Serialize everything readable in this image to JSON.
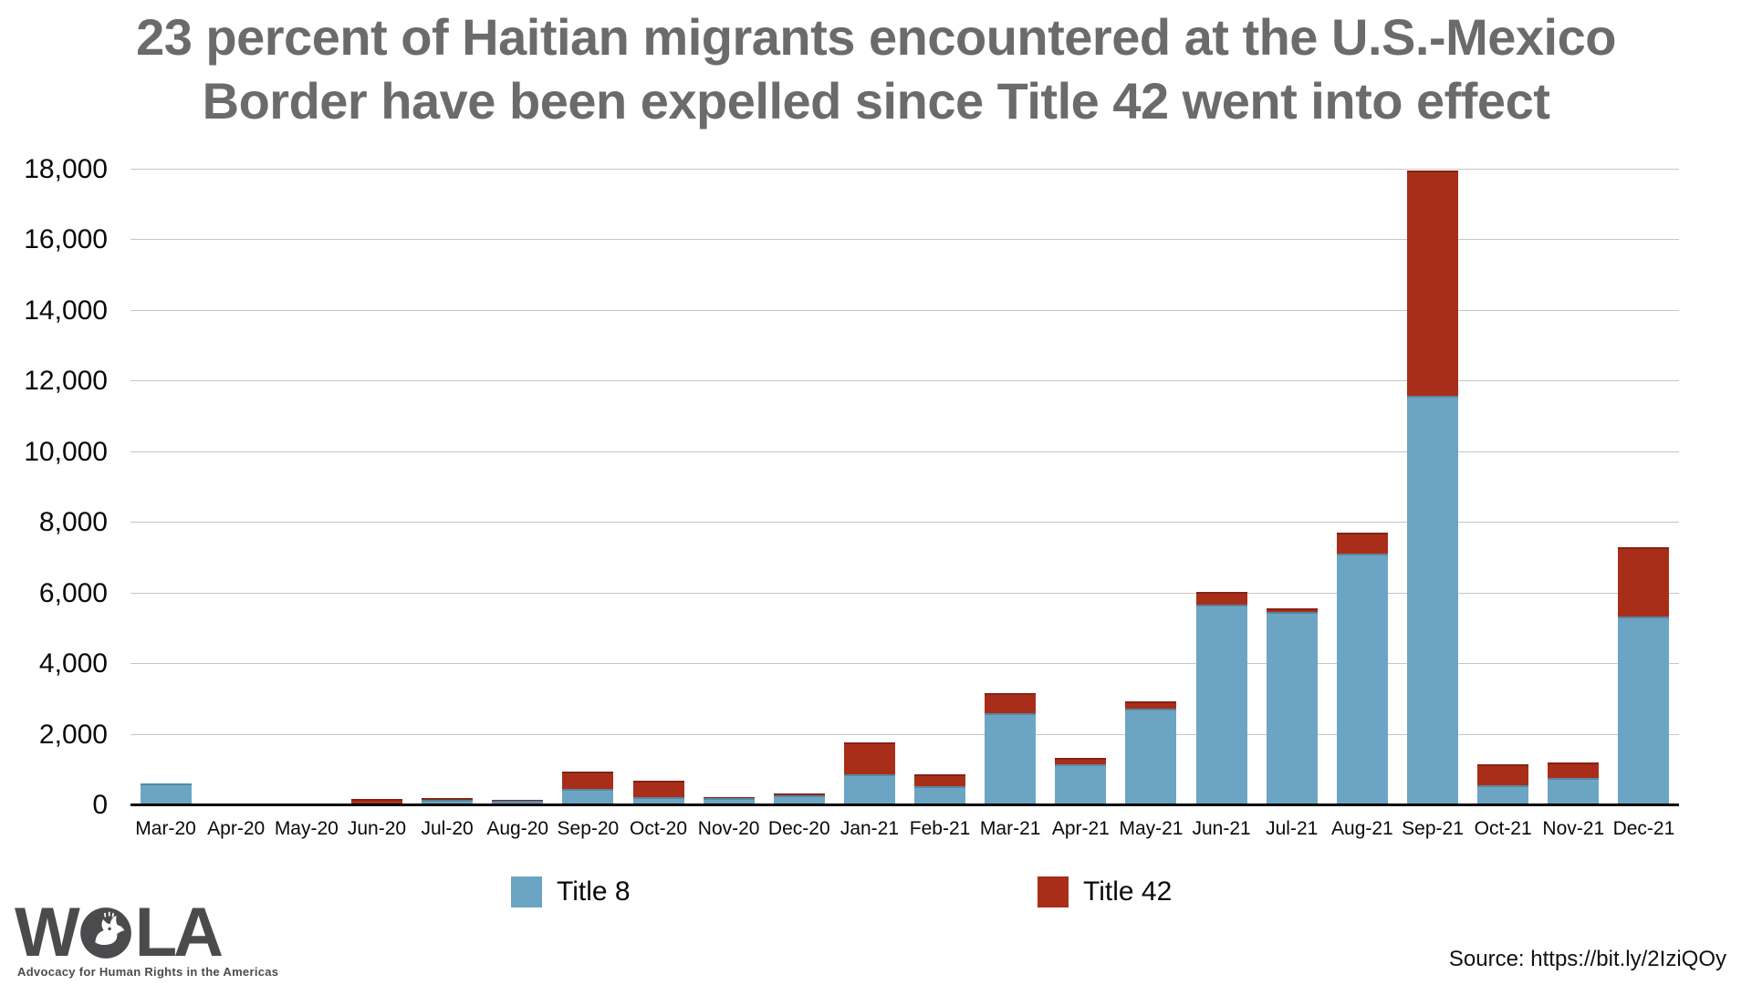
{
  "title": {
    "line1": "23 percent of Haitian migrants encountered at the U.S.-Mexico",
    "line2": "Border have been expelled since Title 42 went into effect"
  },
  "chart_data": {
    "type": "bar",
    "stacked": true,
    "title": "23 percent of Haitian migrants encountered at the U.S.-Mexico Border have been expelled since Title 42 went into effect",
    "categories": [
      "Mar-20",
      "Apr-20",
      "May-20",
      "Jun-20",
      "Jul-20",
      "Aug-20",
      "Sep-20",
      "Oct-20",
      "Nov-20",
      "Dec-20",
      "Jan-21",
      "Feb-21",
      "Mar-21",
      "Apr-21",
      "May-21",
      "Jun-21",
      "Jul-21",
      "Aug-21",
      "Sep-21",
      "Oct-21",
      "Nov-21",
      "Dec-21"
    ],
    "series": [
      {
        "name": "Title 8",
        "color": "#6CA5C4",
        "values": [
          620,
          40,
          50,
          60,
          160,
          130,
          470,
          240,
          215,
          280,
          890,
          550,
          2610,
          1150,
          2740,
          5680,
          5470,
          7140,
          11600,
          570,
          770,
          5340
        ]
      },
      {
        "name": "Title 42",
        "color": "#A92E1A",
        "values": [
          0,
          0,
          0,
          130,
          60,
          20,
          490,
          455,
          10,
          60,
          910,
          340,
          580,
          170,
          200,
          370,
          100,
          590,
          6380,
          590,
          430,
          1950
        ]
      }
    ],
    "xlabel": "",
    "ylabel": "",
    "ylim": [
      0,
      18000
    ],
    "ytick_step": 2000,
    "grid": true,
    "legend_position": "bottom"
  },
  "footer": {
    "logo": {
      "word_start": "W",
      "word_end": "LA",
      "tagline": "Advocacy for Human Rights in the Americas"
    },
    "source": "Source: https://bit.ly/2IziQOy"
  },
  "colors": {
    "title8_blue": "#6CA5C4",
    "title42_red": "#A92E1A",
    "title_gray": "#6A6B6D",
    "gridline": "#C6C6C6",
    "axis_line": "#000000",
    "logo_gray": "#4B4B4D"
  }
}
